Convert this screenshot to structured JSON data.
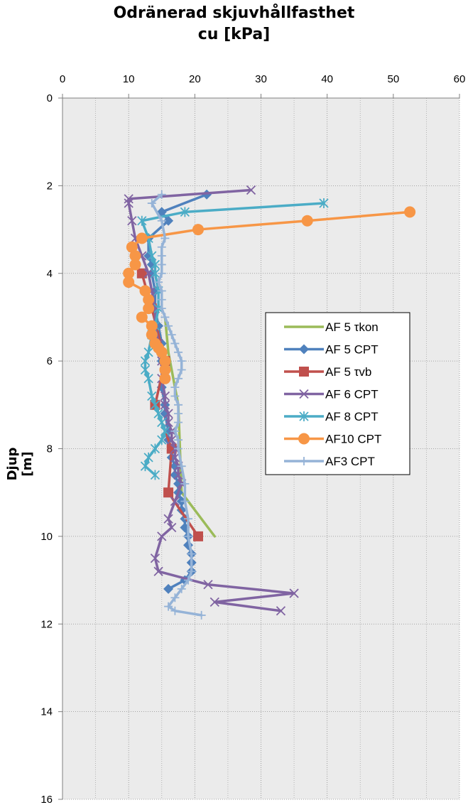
{
  "chart_data": {
    "type": "line",
    "title_line1": "Odränerad skjuvhållfasthet",
    "title_line2": "cu [kPa]",
    "ylabel": "Djup [m]",
    "xlabel": "",
    "xlim": [
      0,
      60
    ],
    "ylim": [
      0,
      16
    ],
    "y_reversed": true,
    "x_axis_position": "top",
    "x_ticks": [
      0,
      10,
      20,
      30,
      40,
      50,
      60
    ],
    "y_ticks": [
      0,
      2,
      4,
      6,
      8,
      10,
      12,
      14,
      16
    ],
    "grid": true,
    "legend_position": "right",
    "series": [
      {
        "name": "AF 5 τkon",
        "color": "#9bbb59",
        "marker": "none",
        "x": [
          15.5,
          16,
          17,
          17.5,
          18,
          23
        ],
        "y": [
          5.0,
          5.8,
          6.6,
          7.0,
          9.0,
          10.0
        ]
      },
      {
        "name": "AF 5 CPT",
        "color": "#4f81bd",
        "marker": "diamond",
        "x": [
          21.8,
          15,
          16,
          13,
          13,
          13.5,
          13.5,
          14,
          14,
          14.5,
          15,
          15,
          15,
          15.5,
          15.5,
          16,
          16,
          16.5,
          16.5,
          17,
          17,
          17.5,
          17.5,
          18,
          18,
          18.5,
          18.5,
          19,
          19,
          19.5,
          19.5,
          19.5,
          18.5,
          16
        ],
        "y": [
          2.2,
          2.6,
          2.8,
          3.2,
          3.6,
          3.8,
          4.0,
          4.4,
          4.8,
          5.2,
          5.6,
          6.0,
          6.6,
          7.0,
          7.2,
          7.6,
          7.8,
          8.0,
          8.2,
          8.4,
          8.6,
          8.8,
          9.0,
          9.2,
          9.4,
          9.6,
          9.8,
          10.0,
          10.2,
          10.4,
          10.6,
          10.8,
          11.0,
          11.2
        ]
      },
      {
        "name": "AF 5 τvb",
        "color": "#c0504d",
        "marker": "square",
        "x": [
          12,
          13.5,
          15.5,
          14,
          16.5,
          16,
          20.5
        ],
        "y": [
          4.0,
          4.8,
          6.0,
          7.0,
          8.0,
          9.0,
          10.0
        ]
      },
      {
        "name": "AF 6 CPT",
        "color": "#8064a2",
        "marker": "x",
        "x": [
          28.5,
          10,
          10,
          10.5,
          11,
          12,
          13,
          13.5,
          14,
          14,
          14.5,
          15,
          15,
          15.5,
          15.5,
          16,
          16,
          16.5,
          16.5,
          17,
          17,
          17.5,
          17.5,
          18,
          17,
          16,
          16.5,
          15,
          14,
          14.5,
          22,
          35,
          23,
          33
        ],
        "y": [
          2.1,
          2.3,
          2.4,
          2.8,
          3.2,
          3.6,
          4.0,
          4.4,
          4.8,
          5.2,
          5.6,
          6.0,
          6.4,
          6.8,
          7.0,
          7.2,
          7.4,
          7.6,
          7.8,
          8.0,
          8.2,
          8.4,
          8.6,
          8.8,
          9.2,
          9.6,
          9.8,
          10.0,
          10.5,
          10.8,
          11.1,
          11.3,
          11.5,
          11.7
        ]
      },
      {
        "name": "AF 8 CPT",
        "color": "#4bacc6",
        "marker": "star",
        "x": [
          39.5,
          18.5,
          12,
          13,
          13.5,
          14,
          14,
          14.5,
          14.5,
          14,
          13.5,
          13,
          12.5,
          12.5,
          13,
          13.5,
          14,
          14.5,
          15,
          15.5,
          15,
          14,
          13,
          12.5,
          14
        ],
        "y": [
          2.4,
          2.6,
          2.8,
          3.2,
          3.6,
          3.8,
          4.0,
          4.4,
          4.8,
          5.2,
          5.4,
          5.8,
          6.0,
          6.2,
          6.4,
          6.8,
          7.0,
          7.2,
          7.4,
          7.6,
          7.8,
          8.0,
          8.2,
          8.4,
          8.6
        ]
      },
      {
        "name": "AF10 CPT",
        "color": "#f79646",
        "marker": "circle",
        "x": [
          52.5,
          37,
          20.5,
          12,
          10.5,
          11,
          11,
          10,
          10,
          12.5,
          13,
          13,
          12,
          13.5,
          13.5,
          14,
          14.5,
          15,
          15.5,
          15.5,
          15.5
        ],
        "y": [
          2.6,
          2.8,
          3.0,
          3.2,
          3.4,
          3.6,
          3.8,
          4.0,
          4.2,
          4.4,
          4.6,
          4.8,
          5.0,
          5.2,
          5.4,
          5.6,
          5.7,
          5.8,
          6.0,
          6.2,
          6.4
        ]
      },
      {
        "name": "AF3 CPT",
        "color": "#95b3d7",
        "marker": "plus",
        "x": [
          15,
          13.5,
          15,
          15.5,
          15,
          15,
          15,
          15,
          14.5,
          15,
          15,
          15,
          15.5,
          16,
          16.5,
          17,
          17.5,
          18,
          18,
          17.5,
          17,
          17,
          17.5,
          17.5,
          17.5,
          17,
          17.5,
          17.5,
          18,
          18.5,
          18.5,
          19,
          19,
          19.5,
          19.5,
          19,
          18,
          17,
          16,
          17,
          21
        ],
        "y": [
          2.2,
          2.4,
          2.8,
          3.2,
          3.4,
          3.6,
          3.8,
          4.0,
          4.2,
          4.4,
          4.6,
          4.8,
          5.0,
          5.2,
          5.4,
          5.6,
          5.8,
          6.0,
          6.2,
          6.4,
          6.6,
          6.8,
          7.0,
          7.2,
          7.4,
          7.6,
          7.8,
          8.0,
          8.4,
          8.8,
          9.2,
          9.6,
          10.0,
          10.4,
          10.8,
          11.0,
          11.2,
          11.4,
          11.6,
          11.7,
          11.8
        ]
      }
    ]
  }
}
